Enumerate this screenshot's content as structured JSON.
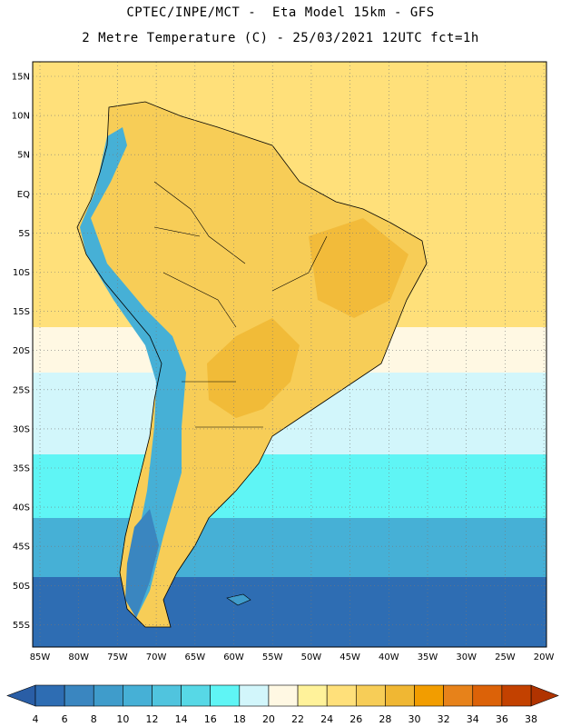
{
  "title": {
    "line1": "CPTEC/INPE/MCT -  Eta Model 15km - GFS",
    "line2": "2 Metre Temperature (C) - 25/03/2021 12UTC fct=1h"
  },
  "map": {
    "lat_labels": [
      "15N",
      "10N",
      "5N",
      "EQ",
      "5S",
      "10S",
      "15S",
      "20S",
      "25S",
      "30S",
      "35S",
      "40S",
      "45S",
      "50S",
      "55S"
    ],
    "lon_labels": [
      "85W",
      "80W",
      "75W",
      "70W",
      "65W",
      "60W",
      "55W",
      "50W",
      "45W",
      "40W",
      "35W",
      "30W",
      "25W",
      "20W"
    ]
  },
  "colorbar": {
    "labels": [
      "4",
      "6",
      "8",
      "10",
      "12",
      "14",
      "16",
      "18",
      "20",
      "22",
      "24",
      "26",
      "28",
      "30",
      "32",
      "34",
      "36",
      "38"
    ],
    "colors": [
      "#2e6db3",
      "#3a86c0",
      "#3f9ccb",
      "#46b0d6",
      "#50c4de",
      "#57d8e6",
      "#5ff5f5",
      "#d2f6fb",
      "#fff8e3",
      "#fff29a",
      "#ffe07a",
      "#f7cd57",
      "#f0b733",
      "#f29d00",
      "#e7821a",
      "#dc6208",
      "#c34100"
    ],
    "under_color": "#2a5ea6",
    "over_color": "#b03300"
  },
  "palette": {
    "cold_sea": "#2e6db3",
    "cool_sea": "#46b0d6",
    "cyan_sea": "#5ff5f5",
    "pale_sea": "#d2f6fb",
    "cream": "#fff8e3",
    "warm_sea": "#ffe07a",
    "land_warm": "#f7cd57",
    "land_hot": "#f0b733"
  }
}
